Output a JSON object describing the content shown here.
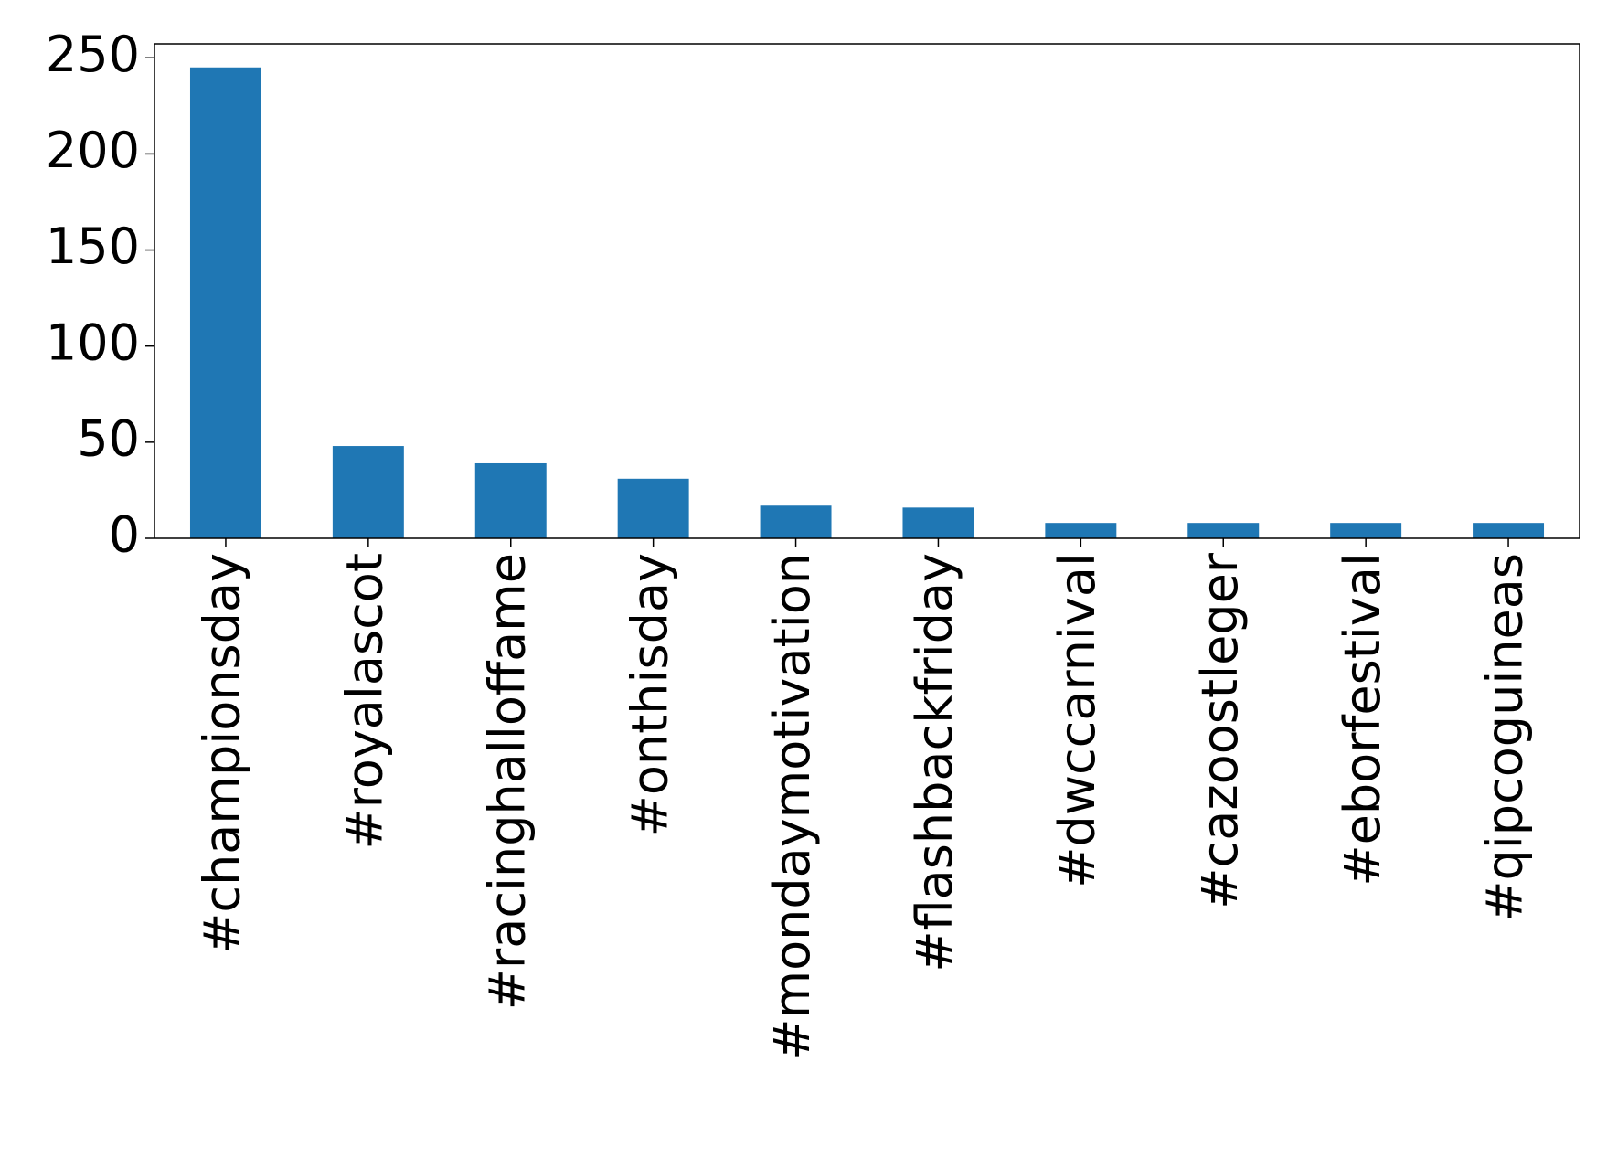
{
  "chart_data": {
    "type": "bar",
    "categories": [
      "#championsday",
      "#royalascot",
      "#racinghalloffame",
      "#onthisday",
      "#mondaymotivation",
      "#flashbackfriday",
      "#dwccarnival",
      "#cazoostleger",
      "#eborfestival",
      "#qipcoguineas"
    ],
    "values": [
      245,
      48,
      39,
      31,
      17,
      16,
      8,
      8,
      8,
      8
    ],
    "color": "#1f77b4",
    "ylim": [
      0,
      257.25
    ],
    "yticks": [
      0,
      50,
      100,
      150,
      200,
      250
    ],
    "grid": false
  }
}
